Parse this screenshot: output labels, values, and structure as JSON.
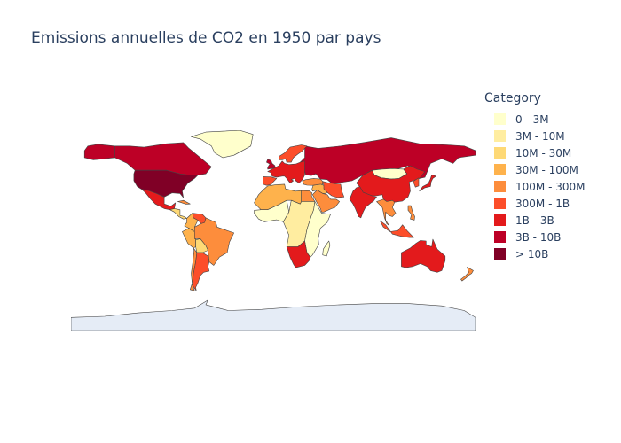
{
  "title": "Emissions annuelles de CO2 en 1950 par pays",
  "legend": {
    "title": "Category",
    "items": [
      {
        "label": "0 - 3M",
        "color": "#ffffcc"
      },
      {
        "label": "3M - 10M",
        "color": "#ffeda0"
      },
      {
        "label": "10M - 30M",
        "color": "#fed976"
      },
      {
        "label": "30M - 100M",
        "color": "#feb24c"
      },
      {
        "label": "100M - 300M",
        "color": "#fd8d3c"
      },
      {
        "label": "300M - 1B",
        "color": "#fc4e2a"
      },
      {
        "label": "1B - 3B",
        "color": "#e31a1c"
      },
      {
        "label": "3B - 10B",
        "color": "#bd0026"
      },
      {
        "label": "> 10B",
        "color": "#800026"
      }
    ]
  },
  "map_data": {
    "type": "choropleth",
    "projection": "equirectangular",
    "year": 1950,
    "no_data_color": "#e5ecf6",
    "border_color": "#444444",
    "regions": [
      {
        "name": "United States",
        "category": "> 10B"
      },
      {
        "name": "Canada",
        "category": "3B - 10B"
      },
      {
        "name": "Alaska",
        "category": "3B - 10B"
      },
      {
        "name": "Greenland",
        "category": "0 - 3M"
      },
      {
        "name": "Mexico",
        "category": "1B - 3B"
      },
      {
        "name": "Central America",
        "category": "10M - 30M"
      },
      {
        "name": "Cuba",
        "category": "100M - 300M"
      },
      {
        "name": "Venezuela",
        "category": "300M - 1B"
      },
      {
        "name": "Colombia",
        "category": "30M - 100M"
      },
      {
        "name": "Brazil",
        "category": "100M - 300M"
      },
      {
        "name": "Peru",
        "category": "30M - 100M"
      },
      {
        "name": "Bolivia",
        "category": "10M - 30M"
      },
      {
        "name": "Argentina",
        "category": "300M - 1B"
      },
      {
        "name": "Chile",
        "category": "100M - 300M"
      },
      {
        "name": "Antarctica",
        "category": "no data"
      },
      {
        "name": "Europe",
        "category": "1B - 3B"
      },
      {
        "name": "United Kingdom",
        "category": "3B - 10B"
      },
      {
        "name": "Iberia",
        "category": "300M - 1B"
      },
      {
        "name": "Scandinavia",
        "category": "300M - 1B"
      },
      {
        "name": "Soviet Union",
        "category": "3B - 10B"
      },
      {
        "name": "Turkey",
        "category": "100M - 300M"
      },
      {
        "name": "Middle East",
        "category": "30M - 100M"
      },
      {
        "name": "Iran",
        "category": "300M - 1B"
      },
      {
        "name": "Saudi Arabia",
        "category": "100M - 300M"
      },
      {
        "name": "Mongolia",
        "category": "0 - 3M"
      },
      {
        "name": "China",
        "category": "1B - 3B"
      },
      {
        "name": "India",
        "category": "1B - 3B"
      },
      {
        "name": "Southeast Asia",
        "category": "100M - 300M"
      },
      {
        "name": "Japan",
        "category": "1B - 3B"
      },
      {
        "name": "Korea",
        "category": "300M - 1B"
      },
      {
        "name": "Indonesia",
        "category": "300M - 1B"
      },
      {
        "name": "Philippines",
        "category": "100M - 300M"
      },
      {
        "name": "Australia",
        "category": "1B - 3B"
      },
      {
        "name": "New Zealand",
        "category": "100M - 300M"
      },
      {
        "name": "North Africa",
        "category": "30M - 100M"
      },
      {
        "name": "Egypt",
        "category": "100M - 300M"
      },
      {
        "name": "West Africa",
        "category": "0 - 3M"
      },
      {
        "name": "Central Africa",
        "category": "3M - 10M"
      },
      {
        "name": "East Africa",
        "category": "0 - 3M"
      },
      {
        "name": "South Africa",
        "category": "1B - 3B"
      },
      {
        "name": "Madagascar",
        "category": "0 - 3M"
      }
    ]
  }
}
